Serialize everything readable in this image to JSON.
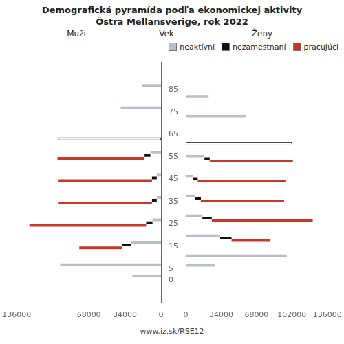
{
  "chart_data": [
    {
      "type": "bar",
      "orientation": "horizontal",
      "stacked": true,
      "title": "Demografická pyramída podľa ekonomickej aktivity",
      "subtitle": "Östra Mellansverige, rok 2022",
      "xlabel": "Muži",
      "ylabel": "Vek",
      "annotations": [
        "www.iz.sk/RSE12"
      ],
      "y": [
        0,
        5,
        15,
        25,
        35,
        45,
        55,
        65,
        75,
        85
      ],
      "xlim": [
        142000,
        0
      ],
      "xticks": [
        136000,
        68000,
        34000,
        0
      ],
      "ylim": [
        -5,
        92
      ],
      "yticks": [
        0,
        5,
        15,
        25,
        35,
        45,
        55,
        65,
        75,
        85
      ],
      "grid": false,
      "series": [
        {
          "name": "neaktívni",
          "color": "#b8bfc8",
          "values": [
            27000,
            95000,
            28000,
            8000,
            4000,
            4000,
            10000,
            null,
            38000,
            18000
          ]
        },
        {
          "name": "nezamestnaní",
          "color": "#111111",
          "values": [
            0,
            0,
            9000,
            6000,
            4500,
            4500,
            5500,
            null,
            0,
            0
          ]
        },
        {
          "name": "pracujúci",
          "color": "#c0392b",
          "values": [
            0,
            0,
            40000,
            110000,
            88000,
            88000,
            82000,
            null,
            0,
            0
          ]
        },
        {
          "color": "#ffffff",
          "values": [
            null,
            null,
            null,
            null,
            null,
            null,
            null,
            97000,
            null,
            null
          ]
        }
      ]
    },
    {
      "type": "bar",
      "orientation": "horizontal",
      "stacked": true,
      "xlabel": "Ženy",
      "y": [
        0,
        5,
        15,
        25,
        35,
        45,
        55,
        65,
        75,
        85
      ],
      "xlim": [
        0,
        142000
      ],
      "xticks": [
        0,
        34000,
        68000,
        102000,
        136000
      ],
      "ylim": [
        -5,
        92
      ],
      "grid": false,
      "tick_labels": "x",
      "legend": "upper right",
      "series": [
        {
          "name": "neaktívni",
          "color": "#b8bfc8",
          "values": [
            28000,
            97000,
            33000,
            16000,
            9000,
            7000,
            18000,
            null,
            58000,
            22000
          ]
        },
        {
          "name": "nezamestnaní",
          "color": "#111111",
          "values": [
            0,
            0,
            11000,
            9000,
            5500,
            4500,
            5000,
            null,
            0,
            0
          ]
        },
        {
          "name": "pracujúci",
          "color": "#c0392b",
          "values": [
            0,
            0,
            37000,
            97000,
            80000,
            85000,
            80000,
            null,
            0,
            0
          ]
        },
        {
          "color": "#ffffff",
          "values": [
            null,
            null,
            null,
            null,
            null,
            null,
            null,
            102000,
            null,
            null
          ]
        }
      ]
    }
  ]
}
